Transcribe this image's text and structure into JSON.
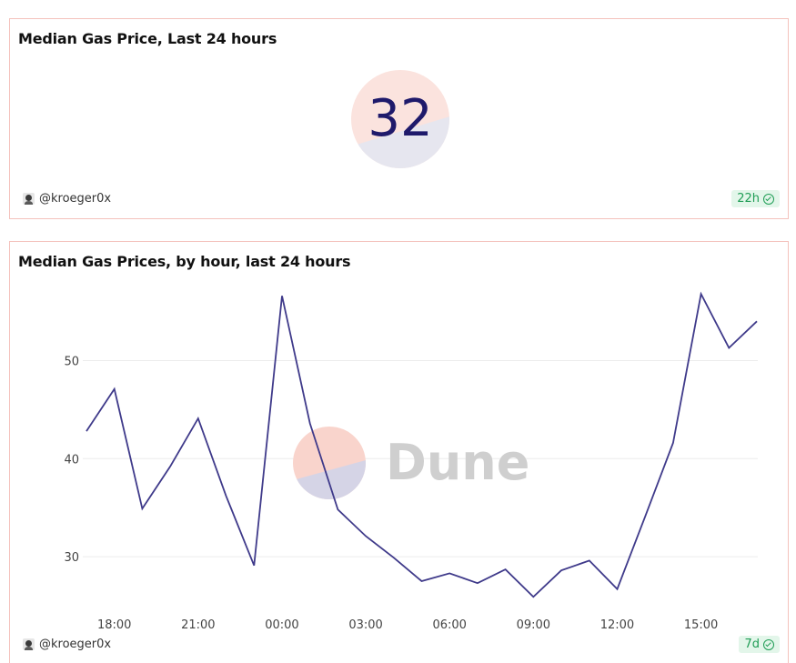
{
  "counter_card": {
    "title": "Median Gas Price, Last 24 hours",
    "value": "32",
    "author": "@kroeger0x",
    "age": "22h"
  },
  "line_card": {
    "title": "Median Gas Prices, by hour, last 24 hours",
    "author": "@kroeger0x",
    "age": "7d",
    "watermark": "Dune"
  },
  "colors": {
    "line": "#3f3a8a",
    "logo_top": "#f9d4cc",
    "logo_bottom": "#d5d4e6",
    "badge_bg": "#e3f6ea",
    "badge_text": "#1f9d55",
    "border": "#f4c2bc"
  },
  "chart_data": {
    "type": "line",
    "title": "Median Gas Prices, by hour, last 24 hours",
    "xlabel": "",
    "ylabel": "",
    "x_ticks": [
      "18:00",
      "21:00",
      "00:00",
      "03:00",
      "06:00",
      "09:00",
      "12:00",
      "15:00"
    ],
    "y_ticks": [
      30,
      40,
      50
    ],
    "ylim": [
      25,
      57
    ],
    "grid": true,
    "x": [
      "17:00",
      "18:00",
      "19:00",
      "20:00",
      "21:00",
      "22:00",
      "23:00",
      "00:00",
      "01:00",
      "02:00",
      "03:00",
      "04:00",
      "05:00",
      "06:00",
      "07:00",
      "08:00",
      "09:00",
      "10:00",
      "11:00",
      "12:00",
      "13:00",
      "14:00",
      "15:00",
      "16:00",
      "17:00"
    ],
    "series": [
      {
        "values": [
          42.8,
          47.1,
          34.9,
          39.2,
          44.1,
          36.2,
          29.1,
          56.6,
          43.6,
          34.8,
          32.1,
          29.9,
          27.5,
          28.3,
          27.3,
          28.7,
          25.9,
          28.6,
          29.6,
          26.7,
          34.1,
          41.6,
          56.8,
          51.3,
          54.0
        ]
      }
    ]
  }
}
